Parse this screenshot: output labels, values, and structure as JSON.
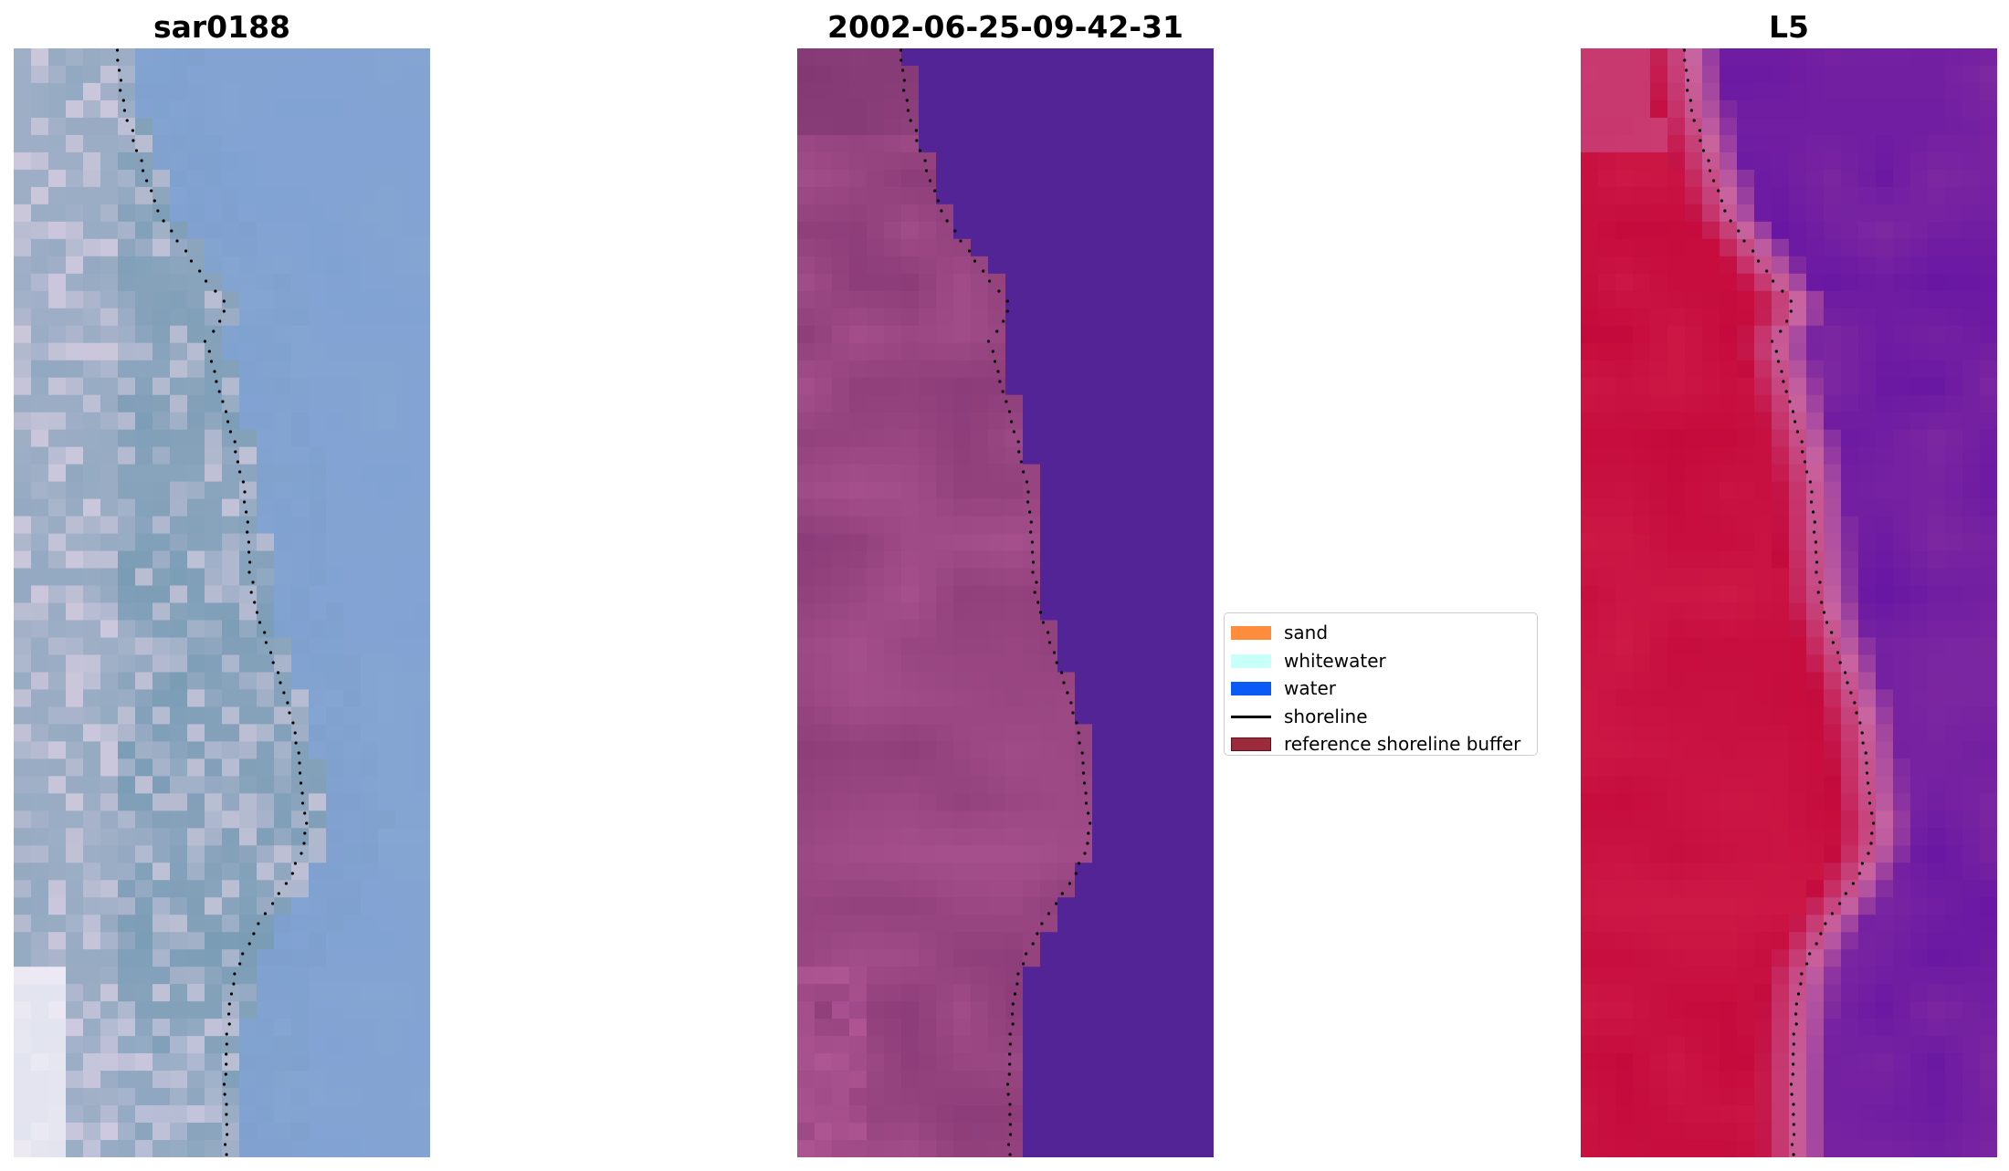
{
  "panels": [
    {
      "title": "sar0188",
      "colormap": "rgb"
    },
    {
      "title": "2002-06-25-09-42-31",
      "colormap": "classified"
    },
    {
      "title": "L5",
      "colormap": "ndwi"
    }
  ],
  "legend": {
    "items": [
      {
        "label": "sand",
        "color": "#ff8c3c",
        "kind": "patch"
      },
      {
        "label": "whitewater",
        "color": "#c8fff8",
        "kind": "patch"
      },
      {
        "label": "water",
        "color": "#0a5af5",
        "kind": "patch"
      },
      {
        "label": "shoreline",
        "color": "#000000",
        "kind": "line"
      },
      {
        "label": "reference shoreline buffer",
        "color": "#9b2a3a",
        "kind": "patch"
      }
    ]
  }
}
